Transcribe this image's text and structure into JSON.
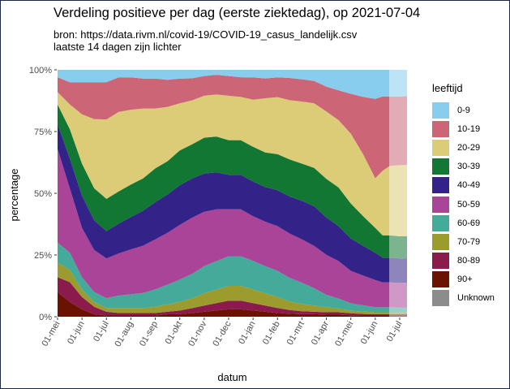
{
  "title": "Verdeling positieve per dag (eerste ziektedag), op 2021-07-04",
  "subtitle": [
    "bron: https://data.rivm.nl/covid-19/COVID-19_casus_landelijk.csv",
    "laatste 14 dagen zijn lichter"
  ],
  "chart_data": {
    "type": "area",
    "stacked": "percentage",
    "xlabel": "datum",
    "ylabel": "percentage",
    "ylim": [
      0,
      1
    ],
    "yticks": [
      {
        "value": 0,
        "label": "0%"
      },
      {
        "value": 0.25,
        "label": "25%"
      },
      {
        "value": 0.5,
        "label": "50%"
      },
      {
        "value": 0.75,
        "label": "75%"
      },
      {
        "value": 1.0,
        "label": "100%"
      }
    ],
    "x_range_months": [
      0,
      14.3
    ],
    "x_tick_labels": [
      "01-mei",
      "01-jun",
      "01-jul",
      "01-aug",
      "01-sep",
      "01-okt",
      "01-nov",
      "01-dec",
      "01-jan",
      "01-feb",
      "01-mrt",
      "01-apr",
      "01-mei",
      "01-jun",
      "01-jul"
    ],
    "lighter_from_month": 13.57,
    "x_months": [
      0,
      0.5,
      1,
      1.5,
      2,
      2.5,
      3,
      3.5,
      4,
      4.5,
      5,
      5.5,
      6,
      6.5,
      7,
      7.5,
      8,
      8.5,
      9,
      9.5,
      10,
      10.5,
      11,
      11.5,
      12,
      12.5,
      13,
      13.3,
      13.6,
      14.0,
      14.3
    ],
    "legend_title": "leeftijd",
    "series": [
      {
        "name": "90+",
        "color": "#6a1300",
        "values": [
          10,
          6,
          3,
          1,
          0.5,
          0.5,
          0.5,
          0.5,
          0.5,
          1,
          1,
          1.5,
          2,
          2.5,
          3,
          3,
          2.5,
          2,
          1.5,
          1.2,
          1,
          1,
          0.8,
          0.8,
          0.6,
          0.5,
          0.5,
          0.5,
          0.5,
          0.5,
          0.5
        ]
      },
      {
        "name": "80-89",
        "color": "#8b1b4c",
        "values": [
          6,
          8,
          5,
          3,
          1.5,
          1,
          1,
          1,
          1,
          1,
          1.5,
          2,
          2.5,
          3,
          3.5,
          3.5,
          3,
          2.5,
          2,
          1.5,
          1.2,
          1,
          1,
          1,
          0.8,
          0.6,
          0.5,
          0.5,
          0.5,
          0.5,
          0.5
        ]
      },
      {
        "name": "70-79",
        "color": "#9c9c2e",
        "values": [
          6,
          5,
          3,
          2,
          1.5,
          2,
          2,
          2,
          2.5,
          3,
          3.5,
          4,
          5,
          5.5,
          6,
          6,
          5.5,
          5,
          4.5,
          3.5,
          3,
          2.5,
          2,
          1.5,
          1,
          1,
          0.8,
          0.8,
          0.8,
          0.8,
          0.8
        ]
      },
      {
        "name": "60-69",
        "color": "#44aa99",
        "values": [
          8,
          7,
          5,
          4,
          4,
          5,
          5.5,
          6,
          7,
          8,
          9,
          10,
          11,
          11.5,
          12,
          12,
          11.5,
          11,
          10.5,
          9.5,
          8.5,
          7,
          5,
          4,
          3,
          2.5,
          2,
          2,
          2,
          2,
          2
        ]
      },
      {
        "name": "50-59",
        "color": "#aa4499",
        "values": [
          38,
          26,
          20,
          17,
          16,
          17,
          18,
          19,
          20,
          21,
          22,
          23,
          22,
          21,
          19,
          19,
          18,
          18,
          18,
          18,
          17.5,
          17,
          16,
          15,
          13,
          12,
          11,
          10,
          10,
          10,
          10
        ]
      },
      {
        "name": "40-49",
        "color": "#332288",
        "values": [
          10,
          12,
          13,
          12,
          11,
          12,
          13,
          14,
          15,
          15.5,
          16,
          16,
          15.5,
          15,
          14,
          14,
          14,
          14,
          14.5,
          15,
          15.5,
          16,
          15,
          14,
          13,
          12,
          11,
          10,
          10,
          10,
          10
        ]
      },
      {
        "name": "30-39",
        "color": "#117733",
        "values": [
          8,
          12,
          13,
          13,
          13,
          13,
          13,
          13,
          13.5,
          13.5,
          14,
          14,
          14.5,
          14.5,
          14,
          14,
          14,
          14,
          14.5,
          15,
          15,
          15.5,
          15.5,
          15.5,
          14,
          12,
          10,
          9,
          9,
          9,
          9
        ]
      },
      {
        "name": "20-29",
        "color": "#ddcc77",
        "values": [
          5,
          10,
          20,
          28,
          32,
          32,
          30,
          28,
          24,
          22,
          19,
          18,
          17,
          17,
          18,
          17.5,
          19,
          22,
          23,
          24,
          25,
          26,
          27,
          27,
          28,
          25,
          20,
          26,
          28,
          29,
          29
        ]
      },
      {
        "name": "10-19",
        "color": "#cc6677",
        "values": [
          6,
          9,
          13,
          15,
          15,
          14,
          13,
          12,
          12,
          11,
          10,
          9,
          8,
          8,
          8,
          8,
          9,
          8,
          8,
          9,
          9,
          9,
          10,
          12,
          16,
          23,
          32,
          30,
          28,
          28,
          28
        ]
      },
      {
        "name": "0-9",
        "color": "#88ccee",
        "values": [
          3,
          5,
          5,
          5,
          5,
          3,
          3,
          3.5,
          3.5,
          4,
          3.5,
          3.5,
          2.5,
          2,
          2.5,
          3,
          3,
          3.5,
          3,
          3.3,
          3.8,
          4.5,
          6.7,
          8.2,
          9.6,
          10.9,
          11.7,
          10.7,
          10.7,
          10.9,
          10.7
        ]
      },
      {
        "name": "Unknown",
        "color": "#8c8c8c",
        "values": [
          0,
          0,
          0,
          0,
          0,
          0,
          0,
          0,
          0,
          0,
          0,
          0,
          0,
          0,
          0,
          0,
          0,
          0,
          0,
          0,
          0,
          0,
          0,
          0,
          0,
          0,
          0,
          0,
          0,
          0,
          0
        ]
      }
    ],
    "legend_order": [
      "0-9",
      "10-19",
      "20-29",
      "30-39",
      "40-49",
      "50-59",
      "60-69",
      "70-79",
      "80-89",
      "90+",
      "Unknown"
    ]
  }
}
